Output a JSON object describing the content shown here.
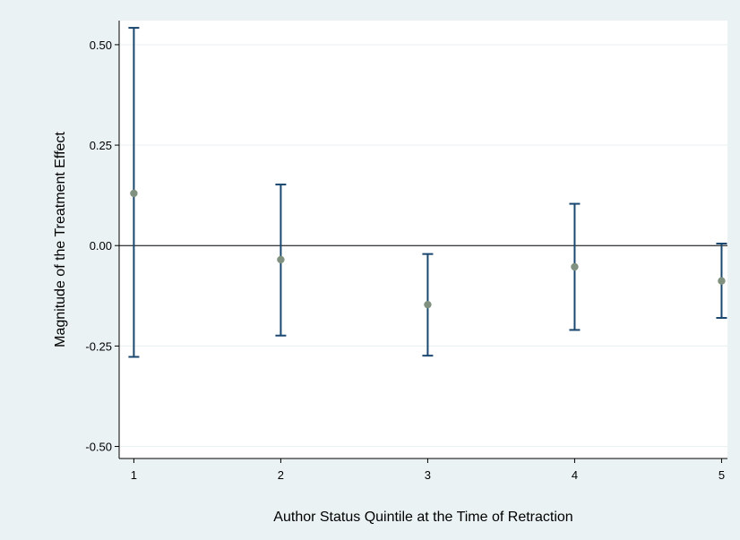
{
  "chart_data": {
    "type": "scatter",
    "xlabel": "Author Status Quintile at the Time of Retraction",
    "ylabel": "Magnitude of the Treatment Effect",
    "x_ticks": [
      1,
      2,
      3,
      4,
      5
    ],
    "y_ticks": [
      0.5,
      0.25,
      0,
      -0.25,
      -0.5
    ],
    "y_tick_labels": [
      "0.50",
      "0.25",
      "0.00",
      "-0.25",
      "-0.50"
    ],
    "xlim": [
      0.9,
      5.04
    ],
    "ylim": [
      -0.53,
      0.56
    ],
    "grid": true,
    "reference_line_y": 0,
    "points": [
      {
        "x": 1,
        "y": 0.13,
        "lower": -0.277,
        "upper": 0.542
      },
      {
        "x": 2,
        "y": -0.035,
        "lower": -0.224,
        "upper": 0.152
      },
      {
        "x": 3,
        "y": -0.147,
        "lower": -0.274,
        "upper": -0.021
      },
      {
        "x": 4,
        "y": -0.053,
        "lower": -0.21,
        "upper": 0.104
      },
      {
        "x": 5,
        "y": -0.088,
        "lower": -0.18,
        "upper": 0.005
      }
    ],
    "colors": {
      "outer_background": "#eaf2f3",
      "plot_background": "#ffffff",
      "grid": "#eaf2f3",
      "error_bar": "#1a476f",
      "marker": "#80917f",
      "reference_line": "#000000"
    }
  }
}
